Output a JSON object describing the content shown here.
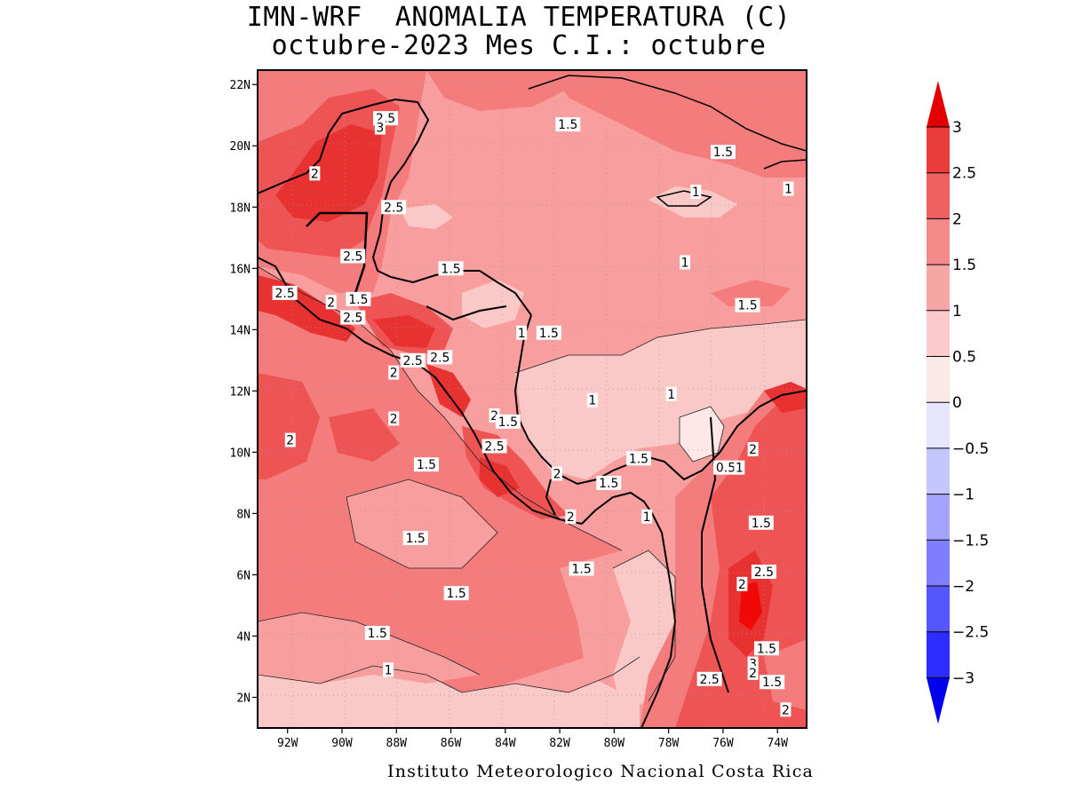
{
  "title": {
    "line1": "IMN-WRF  ANOMALIA TEMPERATURA (C)",
    "line2": "octubre-2023 Mes C.I.: octubre"
  },
  "footer": "Instituto Meteorologico Nacional Costa Rica",
  "colors": {
    "lt0": "#e9e9ff",
    "c0_05": "#fde7e7",
    "c05_1": "#fbc8c8",
    "c1_15": "#f99e9e",
    "c15_2": "#f47c7c",
    "c2_25": "#ee5454",
    "c25_3": "#e83232",
    "gt3": "#f10808",
    "coast": "#000000"
  },
  "map": {
    "lat_labels": [
      "22N",
      "20N",
      "18N",
      "16N",
      "14N",
      "12N",
      "10N",
      "8N",
      "6N",
      "4N",
      "2N"
    ],
    "lon_labels": [
      "92W",
      "90W",
      "88W",
      "86W",
      "84W",
      "82W",
      "80W",
      "78W",
      "76W",
      "74W"
    ]
  },
  "colorbar": {
    "levels": [
      "3",
      "2.5",
      "2",
      "1.5",
      "1",
      "0.5",
      "0",
      "-0.5",
      "-1",
      "-1.5",
      "-2",
      "-2.5",
      "-3"
    ],
    "fills": [
      "#e50000",
      "#eb3c3c",
      "#ef6060",
      "#f48a8a",
      "#f7a6a6",
      "#fbcaca",
      "#fde8e8",
      "#e6e6ff",
      "#c6c6ff",
      "#a4a4ff",
      "#7e7eff",
      "#5656ff",
      "#2d2dff",
      "#0000f0"
    ]
  },
  "contour_labels": [
    {
      "t": "2.5",
      "lon": -88.4,
      "lat": 20.9
    },
    {
      "t": "3",
      "lon": -88.6,
      "lat": 20.6
    },
    {
      "t": "2",
      "lon": -91.0,
      "lat": 19.1
    },
    {
      "t": "2.5",
      "lon": -88.1,
      "lat": 18.0
    },
    {
      "t": "2.5",
      "lon": -89.6,
      "lat": 16.4
    },
    {
      "t": "2.5",
      "lon": -92.1,
      "lat": 15.2
    },
    {
      "t": "2",
      "lon": -90.4,
      "lat": 14.9
    },
    {
      "t": "1.5",
      "lon": -89.4,
      "lat": 15.0
    },
    {
      "t": "2.5",
      "lon": -89.6,
      "lat": 14.4
    },
    {
      "t": "1.5",
      "lon": -81.7,
      "lat": 20.7
    },
    {
      "t": "1.5",
      "lon": -76.0,
      "lat": 19.8
    },
    {
      "t": "1",
      "lon": -77.0,
      "lat": 18.5
    },
    {
      "t": "1",
      "lon": -73.6,
      "lat": 18.6
    },
    {
      "t": "1",
      "lon": -77.4,
      "lat": 16.2
    },
    {
      "t": "1.5",
      "lon": -86.0,
      "lat": 16.0
    },
    {
      "t": "1.5",
      "lon": -75.1,
      "lat": 14.8
    },
    {
      "t": "1",
      "lon": -83.4,
      "lat": 13.9
    },
    {
      "t": "1.5",
      "lon": -82.4,
      "lat": 13.9
    },
    {
      "t": "2.5",
      "lon": -87.4,
      "lat": 13.0
    },
    {
      "t": "2.5",
      "lon": -86.4,
      "lat": 13.1
    },
    {
      "t": "2",
      "lon": -88.1,
      "lat": 12.6
    },
    {
      "t": "1",
      "lon": -80.8,
      "lat": 11.7
    },
    {
      "t": "1",
      "lon": -77.9,
      "lat": 11.9
    },
    {
      "t": "2",
      "lon": -88.1,
      "lat": 11.1
    },
    {
      "t": "2",
      "lon": -84.4,
      "lat": 11.2
    },
    {
      "t": "1.5",
      "lon": -83.9,
      "lat": 11.0
    },
    {
      "t": "2",
      "lon": -91.9,
      "lat": 10.4
    },
    {
      "t": "2.5",
      "lon": -84.4,
      "lat": 10.2
    },
    {
      "t": "1.5",
      "lon": -86.9,
      "lat": 9.6
    },
    {
      "t": "1.5",
      "lon": -79.1,
      "lat": 9.8
    },
    {
      "t": "0.5",
      "lon": -75.9,
      "lat": 9.5
    },
    {
      "t": "1",
      "lon": -75.4,
      "lat": 9.5
    },
    {
      "t": "2",
      "lon": -74.9,
      "lat": 10.1
    },
    {
      "t": "2",
      "lon": -82.1,
      "lat": 9.3
    },
    {
      "t": "1.5",
      "lon": -80.2,
      "lat": 9.0
    },
    {
      "t": "2",
      "lon": -81.6,
      "lat": 7.9
    },
    {
      "t": "1",
      "lon": -78.8,
      "lat": 7.9
    },
    {
      "t": "1.5",
      "lon": -74.6,
      "lat": 7.7
    },
    {
      "t": "1.5",
      "lon": -87.3,
      "lat": 7.2
    },
    {
      "t": "1.5",
      "lon": -81.2,
      "lat": 6.2
    },
    {
      "t": "2.5",
      "lon": -74.5,
      "lat": 6.1
    },
    {
      "t": "2",
      "lon": -75.3,
      "lat": 5.7
    },
    {
      "t": "1.5",
      "lon": -85.8,
      "lat": 5.4
    },
    {
      "t": "1.5",
      "lon": -88.7,
      "lat": 4.1
    },
    {
      "t": "1.5",
      "lon": -74.4,
      "lat": 3.6
    },
    {
      "t": "3",
      "lon": -74.9,
      "lat": 3.1
    },
    {
      "t": "2",
      "lon": -74.9,
      "lat": 2.8
    },
    {
      "t": "1",
      "lon": -88.3,
      "lat": 2.9
    },
    {
      "t": "2.5",
      "lon": -76.5,
      "lat": 2.6
    },
    {
      "t": "1.5",
      "lon": -74.2,
      "lat": 2.5
    },
    {
      "t": "2",
      "lon": -73.7,
      "lat": 1.6
    }
  ]
}
